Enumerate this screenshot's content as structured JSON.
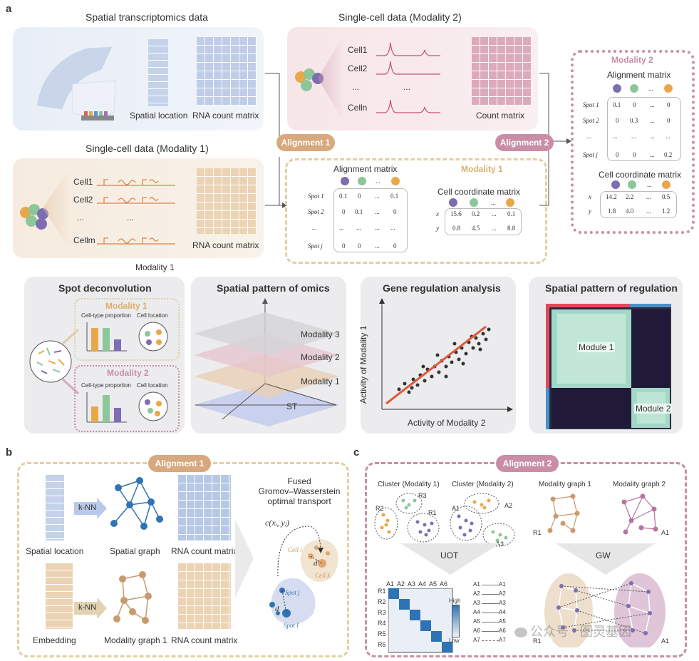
{
  "panel_labels": {
    "a": "a",
    "b": "b",
    "c": "c"
  },
  "top": {
    "st_title": "Spatial transcriptomics data",
    "spatial_location": "Spatial location",
    "rna_count_matrix": "RNA count matrix",
    "sc1_title": "Single-cell data (Modality 1)",
    "sc1_cells": [
      "Cell1",
      "Cell2",
      "...",
      "Cellm"
    ],
    "sc1_dots": "...",
    "sc1_rna": "RNA count matrix",
    "modality1_caption": "Modality 1",
    "sc2_title": "Single-cell data (Modality 2)",
    "sc2_cells": [
      "Cell1",
      "Cell2",
      "...",
      "Celln"
    ],
    "sc2_dots": "...",
    "count_matrix": "Count matrix",
    "alignment1": "Alignment 1",
    "alignment2": "Alignment 2"
  },
  "mod1_box": {
    "title": "Modality 1",
    "alignment_matrix": "Alignment matrix",
    "dots_header": "...",
    "rows": [
      {
        "label": "Spot 1",
        "vals": [
          "0.1",
          "0",
          "...",
          "0.1"
        ]
      },
      {
        "label": "Spot 2",
        "vals": [
          "0",
          "0.1",
          "...",
          "0"
        ]
      },
      {
        "label": "...",
        "vals": [
          "...",
          "...",
          "...",
          "..."
        ]
      },
      {
        "label": "Spot j",
        "vals": [
          "0",
          "0",
          "...",
          "0"
        ]
      }
    ],
    "cell_coord": "Cell coordinate matrix",
    "coord_rows": [
      {
        "label": "x",
        "vals": [
          "15.6",
          "0.2",
          "...",
          "0.1"
        ]
      },
      {
        "label": "y",
        "vals": [
          "0.8",
          "4.5",
          "...",
          "8.8"
        ]
      }
    ]
  },
  "mod2_box": {
    "title": "Modality 2",
    "alignment_matrix": "Alignment matrix",
    "dots_header": "...",
    "rows": [
      {
        "label": "Spot 1",
        "vals": [
          "0.1",
          "0",
          "...",
          "0"
        ]
      },
      {
        "label": "Spot 2",
        "vals": [
          "0",
          "0.3",
          "...",
          "0"
        ]
      },
      {
        "label": "...",
        "vals": [
          "...",
          "...",
          "...",
          "..."
        ]
      },
      {
        "label": "Spot j",
        "vals": [
          "0",
          "0",
          "...",
          "0.2"
        ]
      }
    ],
    "cell_coord": "Cell coordinate matrix",
    "coord_rows": [
      {
        "label": "x",
        "vals": [
          "14.2",
          "2.2",
          "...",
          "0.5"
        ]
      },
      {
        "label": "y",
        "vals": [
          "1.8",
          "4.0",
          "...",
          "1.2"
        ]
      }
    ]
  },
  "apps": {
    "spot_deconv": {
      "title": "Spot deconvolution",
      "m1": "Modality 1",
      "m2": "Modality 2",
      "ctp": "Cell-type proportion",
      "cloc": "Cell location"
    },
    "spatial_omics": {
      "title": "Spatial pattern of omics",
      "layers": [
        "Modality 3",
        "Modality 2",
        "Modality 1",
        "ST"
      ]
    },
    "gene_reg": {
      "title": "Gene regulation analysis",
      "xlabel": "Activity of Modality 2",
      "ylabel": "Activity of Modality 1"
    },
    "spatial_reg": {
      "title": "Spatial pattern of regulation",
      "module1": "Module 1",
      "module2": "Module 2"
    }
  },
  "b": {
    "alignment": "Alignment 1",
    "knn": "k-NN",
    "spatial_location": "Spatial location",
    "spatial_graph": "Spatial graph",
    "rna1": "RNA count matrix",
    "embedding": "Embedding",
    "modality_graph": "Modality graph 1",
    "rna2": "RNA count matrix",
    "fgw": [
      "Fused",
      "Gromov–Wasserstein",
      "optimal transport"
    ],
    "cost": "c(xᵢ, yⱼ)",
    "cell_i": "Cell i",
    "cell_k": "Cell k",
    "spot_j": "Spot j",
    "spot_l": "Spot l",
    "d_a": "d",
    "d_b": "d"
  },
  "c": {
    "alignment": "Alignment 2",
    "cluster1": "Cluster (Modality 1)",
    "cluster2": "Cluster (Modality 2)",
    "graph1": "Modality graph 1",
    "graph2": "Modality graph 2",
    "uot": "UOT",
    "gw": "GW",
    "cols": [
      "A1",
      "A2",
      "A3",
      "A4",
      "A5",
      "A6"
    ],
    "rows": [
      "R1",
      "R2",
      "R3",
      "R4",
      "R5",
      "R6"
    ],
    "high": "High",
    "low": "Low",
    "pairs": [
      "A1",
      "A2",
      "A3",
      "A4",
      "A5",
      "A6",
      "A7"
    ],
    "r1": "R1",
    "r2": "R2",
    "r3": "R3",
    "a1": "A1",
    "a2": "A2",
    "a3": "A3",
    "watermark": "公众号 · 图灵基因"
  },
  "colors": {
    "alignment1": "#d8a97e",
    "alignment2": "#c98ea6",
    "mod1_dash": "#e2cfa3",
    "mod2_dash": "#c98ea6",
    "purple": "#7e6db3",
    "green": "#8cc79a",
    "orange": "#e8a84a"
  }
}
